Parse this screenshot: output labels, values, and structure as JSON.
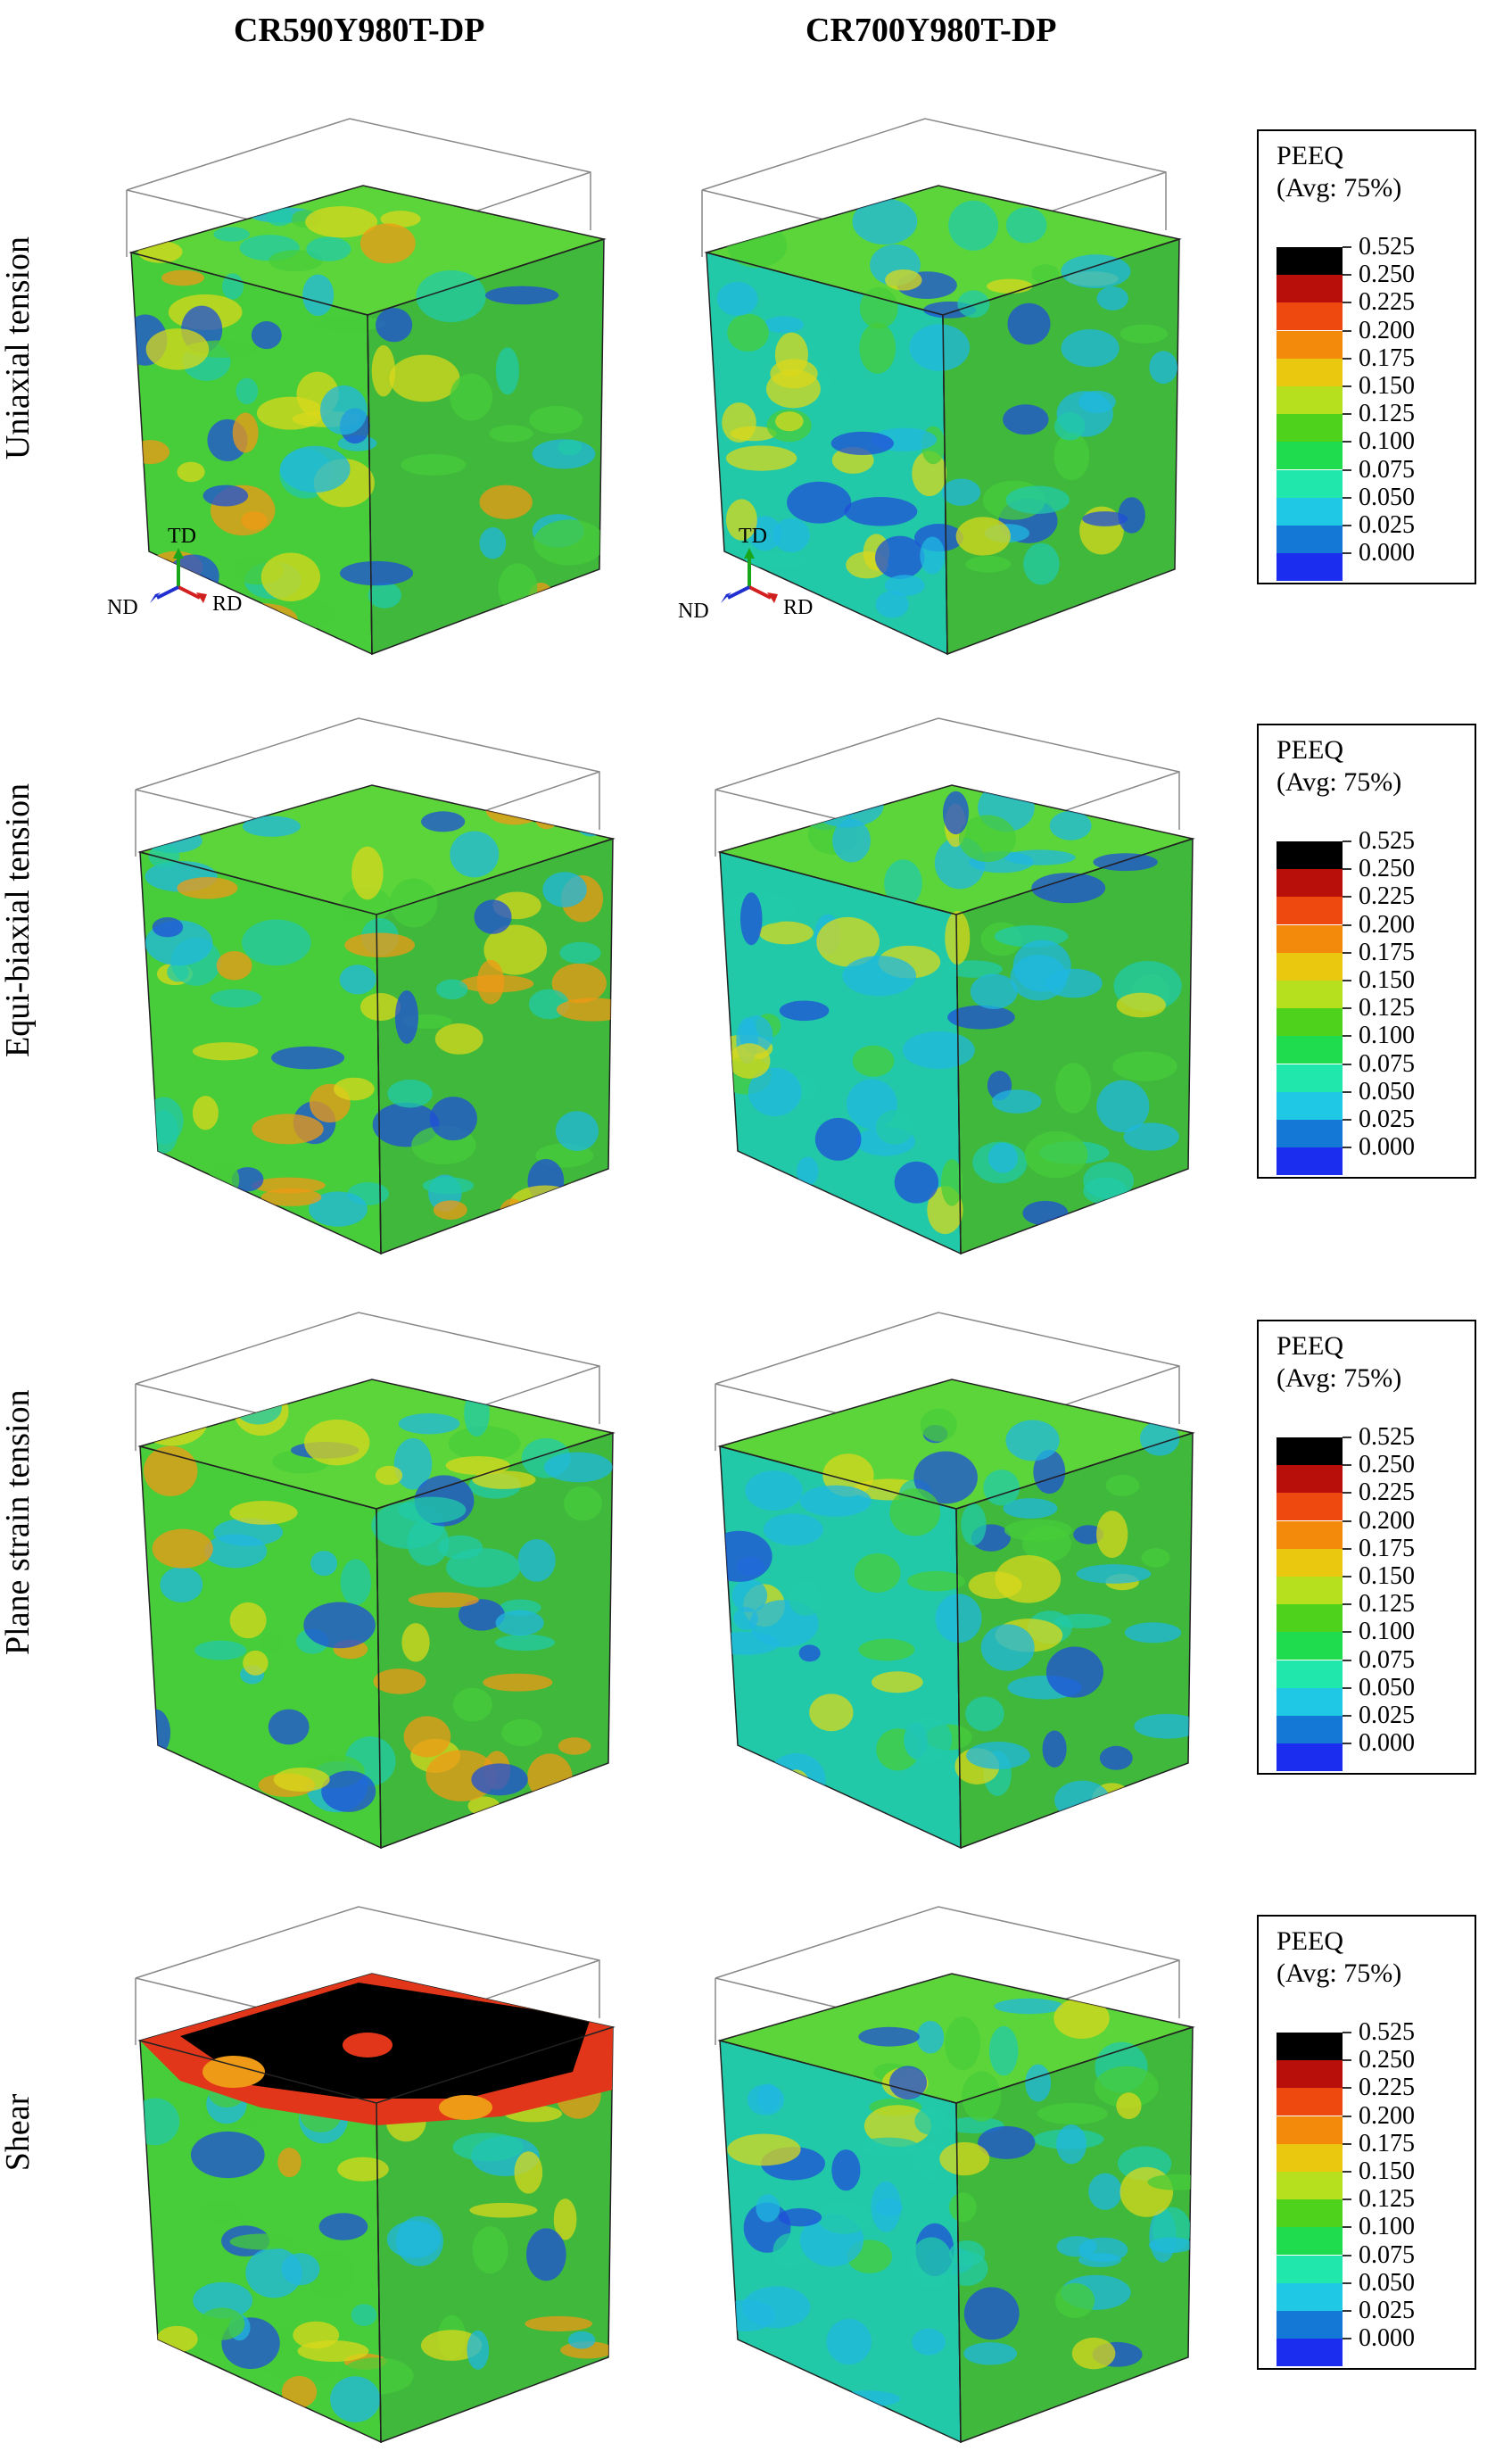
{
  "columns": [
    "CR590Y980T-DP",
    "CR700Y980T-DP"
  ],
  "rows": [
    "Uniaxial tension",
    "Equi-biaxial tension",
    "Plane strain tension",
    "Shear"
  ],
  "legend": {
    "title_line1": "PEEQ",
    "title_line2": "(Avg: 75%)",
    "levels": [
      {
        "value": "0.525",
        "color": "#000000"
      },
      {
        "value": "0.250",
        "color": "#b80f0a"
      },
      {
        "value": "0.225",
        "color": "#ee4a10"
      },
      {
        "value": "0.200",
        "color": "#f38a0c"
      },
      {
        "value": "0.175",
        "color": "#e9c80f"
      },
      {
        "value": "0.150",
        "color": "#b6e01e"
      },
      {
        "value": "0.125",
        "color": "#4fd21c"
      },
      {
        "value": "0.100",
        "color": "#1fdb4e"
      },
      {
        "value": "0.075",
        "color": "#20e8ad"
      },
      {
        "value": "0.050",
        "color": "#1fc9e6"
      },
      {
        "value": "0.025",
        "color": "#1479d6"
      },
      {
        "value": "0.000",
        "color": "#1b2ef0"
      }
    ]
  },
  "axes": {
    "td": "TD",
    "nd": "ND",
    "rd": "RD"
  },
  "colors": {
    "base_green": "#47cc3a",
    "top_green": "#5bd53a",
    "right_green": "#3fb83c",
    "teal": "#22c9a8",
    "cyan": "#20b7e0",
    "blue": "#1f4fd8",
    "yellow": "#d9d81c",
    "orange": "#ef9a16",
    "red": "#e2361a",
    "black": "#000000"
  }
}
